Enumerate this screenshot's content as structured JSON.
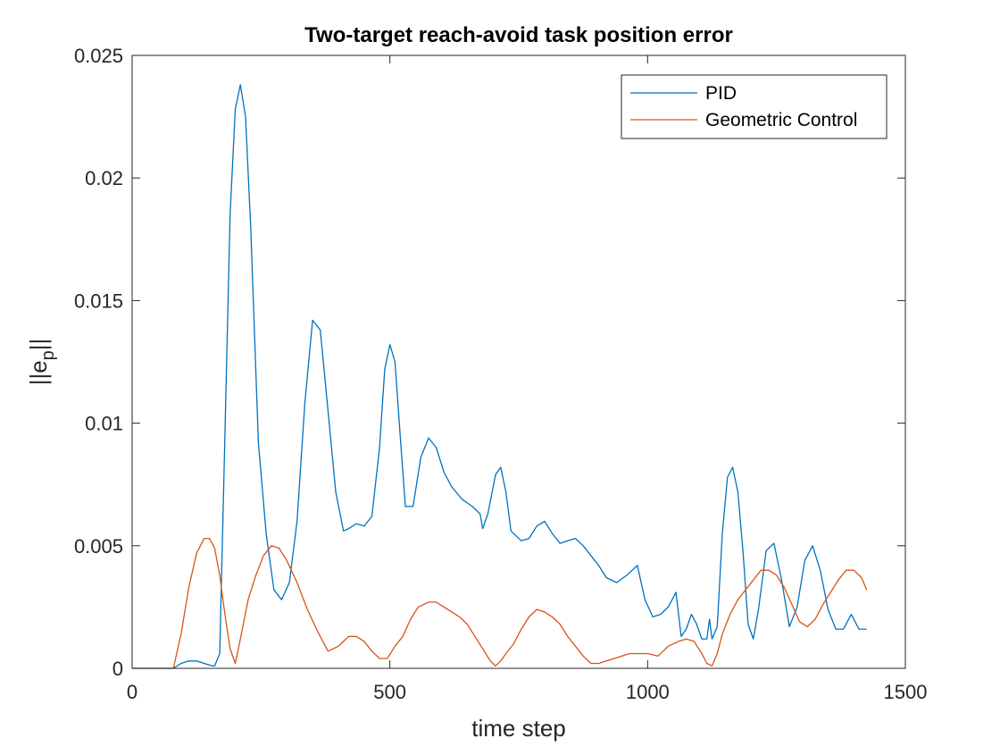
{
  "chart_data": {
    "type": "line",
    "title": "Two-target reach-avoid task position error",
    "xlabel": "time step",
    "ylabel": {
      "base": "||e",
      "subscript": "p",
      "suffix": "||"
    },
    "xlim": [
      0,
      1500
    ],
    "ylim": [
      0,
      0.025
    ],
    "xticks": [
      0,
      500,
      1000,
      1500
    ],
    "xtick_labels": [
      "0",
      "500",
      "1000",
      "1500"
    ],
    "yticks": [
      0,
      0.005,
      0.01,
      0.015,
      0.02,
      0.025
    ],
    "ytick_labels": [
      "0",
      "0.005",
      "0.01",
      "0.015",
      "0.02",
      "0.025"
    ],
    "grid": false,
    "legend_position": "top-right",
    "colors": {
      "PID": "#0072BD",
      "Geometric Control": "#D95319",
      "axes": "#262626"
    },
    "series": [
      {
        "name": "PID",
        "x": [
          0,
          80,
          95,
          110,
          125,
          140,
          155,
          160,
          170,
          180,
          190,
          200,
          210,
          220,
          230,
          245,
          260,
          275,
          290,
          305,
          320,
          335,
          350,
          365,
          380,
          395,
          410,
          420,
          435,
          450,
          465,
          480,
          490,
          500,
          510,
          520,
          530,
          545,
          560,
          575,
          590,
          605,
          620,
          640,
          660,
          675,
          680,
          690,
          705,
          715,
          725,
          735,
          745,
          755,
          770,
          785,
          800,
          815,
          830,
          845,
          860,
          875,
          890,
          905,
          920,
          940,
          960,
          980,
          995,
          1010,
          1025,
          1040,
          1055,
          1065,
          1075,
          1085,
          1095,
          1105,
          1115,
          1120,
          1125,
          1135,
          1145,
          1155,
          1165,
          1175,
          1185,
          1195,
          1205,
          1215,
          1230,
          1245,
          1260,
          1275,
          1290,
          1305,
          1320,
          1335,
          1350,
          1365,
          1380,
          1395,
          1410,
          1425
        ],
        "y": [
          0,
          0,
          0.0002,
          0.0003,
          0.0003,
          0.0002,
          0.0001,
          0.0001,
          0.0006,
          0.0095,
          0.0185,
          0.0228,
          0.0238,
          0.0225,
          0.018,
          0.0092,
          0.0055,
          0.0032,
          0.0028,
          0.0035,
          0.006,
          0.0108,
          0.0142,
          0.0138,
          0.0105,
          0.0072,
          0.0056,
          0.0057,
          0.0059,
          0.0058,
          0.0062,
          0.009,
          0.0122,
          0.0132,
          0.0125,
          0.0095,
          0.0066,
          0.0066,
          0.0086,
          0.0094,
          0.009,
          0.008,
          0.0074,
          0.0069,
          0.0066,
          0.0063,
          0.0057,
          0.0063,
          0.0079,
          0.0082,
          0.0072,
          0.0056,
          0.0054,
          0.0052,
          0.0053,
          0.0058,
          0.006,
          0.0055,
          0.0051,
          0.0052,
          0.0053,
          0.005,
          0.0046,
          0.0042,
          0.0037,
          0.0035,
          0.0038,
          0.0042,
          0.0028,
          0.0021,
          0.0022,
          0.0025,
          0.0031,
          0.0013,
          0.0016,
          0.0022,
          0.0018,
          0.0012,
          0.0012,
          0.002,
          0.0012,
          0.0017,
          0.0055,
          0.0078,
          0.0082,
          0.0072,
          0.0048,
          0.0018,
          0.0012,
          0.0024,
          0.0048,
          0.0051,
          0.0036,
          0.0017,
          0.0025,
          0.0044,
          0.005,
          0.004,
          0.0024,
          0.0016,
          0.0016,
          0.0022,
          0.0016,
          0.0016
        ]
      },
      {
        "name": "Geometric Control",
        "x": [
          0,
          80,
          95,
          110,
          125,
          140,
          150,
          160,
          170,
          180,
          190,
          200,
          210,
          225,
          240,
          255,
          270,
          285,
          300,
          320,
          340,
          360,
          380,
          400,
          420,
          435,
          450,
          465,
          480,
          495,
          510,
          525,
          540,
          555,
          575,
          590,
          605,
          620,
          635,
          650,
          665,
          680,
          695,
          705,
          715,
          725,
          740,
          755,
          770,
          785,
          800,
          815,
          830,
          845,
          860,
          875,
          890,
          905,
          920,
          935,
          950,
          965,
          980,
          1000,
          1020,
          1040,
          1060,
          1075,
          1090,
          1105,
          1115,
          1125,
          1135,
          1145,
          1160,
          1175,
          1190,
          1205,
          1220,
          1235,
          1250,
          1265,
          1280,
          1295,
          1310,
          1325,
          1340,
          1355,
          1370,
          1385,
          1400,
          1415,
          1425
        ],
        "y": [
          0,
          0,
          0.0014,
          0.0033,
          0.0047,
          0.0053,
          0.0053,
          0.0049,
          0.0038,
          0.0022,
          0.0008,
          0.0002,
          0.0012,
          0.0028,
          0.0038,
          0.0046,
          0.005,
          0.0049,
          0.0044,
          0.0035,
          0.0024,
          0.0015,
          0.0007,
          0.0009,
          0.0013,
          0.0013,
          0.0011,
          0.0007,
          0.0004,
          0.0004,
          0.0009,
          0.0013,
          0.002,
          0.0025,
          0.0027,
          0.0027,
          0.0025,
          0.0023,
          0.0021,
          0.0018,
          0.0013,
          0.0008,
          0.0003,
          0.0001,
          0.0003,
          0.0006,
          0.001,
          0.0016,
          0.0021,
          0.0024,
          0.0023,
          0.0021,
          0.0018,
          0.0013,
          0.0009,
          0.0005,
          0.0002,
          0.0002,
          0.0003,
          0.0004,
          0.0005,
          0.0006,
          0.0006,
          0.0006,
          0.0005,
          0.0009,
          0.0011,
          0.0012,
          0.0011,
          0.0006,
          0.0002,
          0.0001,
          0.0006,
          0.0014,
          0.0022,
          0.0028,
          0.0032,
          0.0036,
          0.004,
          0.004,
          0.0038,
          0.0033,
          0.0026,
          0.0019,
          0.0017,
          0.002,
          0.0026,
          0.0031,
          0.0036,
          0.004,
          0.004,
          0.0037,
          0.0032
        ]
      }
    ]
  }
}
